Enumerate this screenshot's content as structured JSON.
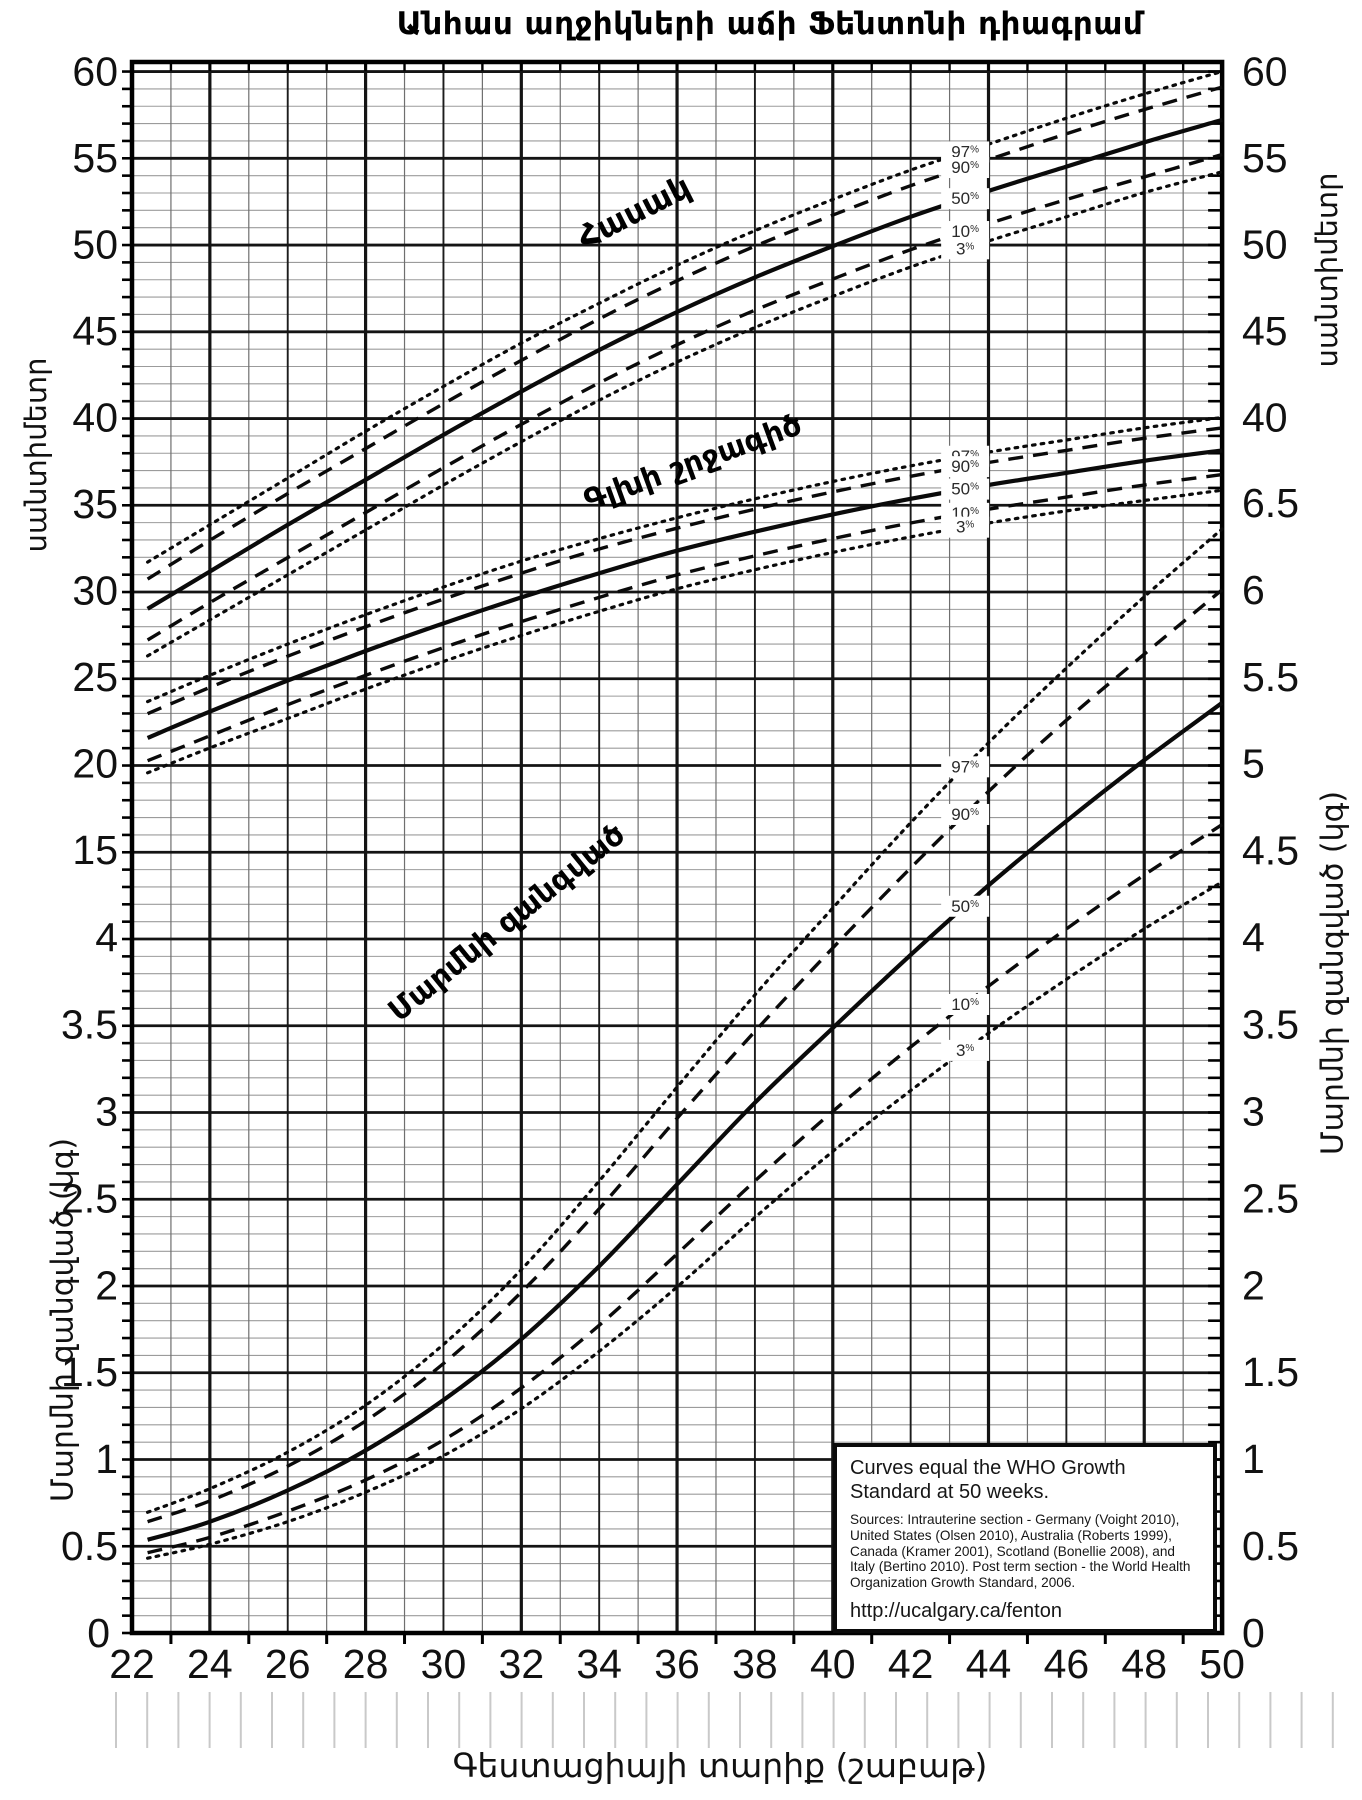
{
  "title": "Անհաս աղջիկների աճի Ֆենտոնի դիագրամ",
  "x_axis": {
    "label": "Գեստացիայի տարիք (շաբաթ)",
    "tick_labels": [
      22,
      24,
      26,
      28,
      30,
      32,
      34,
      36,
      38,
      40,
      42,
      44,
      46,
      48,
      50
    ],
    "min": 22,
    "max": 50,
    "unit": "weeks"
  },
  "left_axis": {
    "cm_label": "սանտիմետր",
    "cm_ticks": [
      60,
      55,
      50,
      45,
      40,
      35,
      30,
      25,
      20,
      15
    ],
    "kg_label": "Մարմնի զանգված (կգ)",
    "kg_ticks": [
      4,
      3.5,
      3,
      2.5,
      2,
      1.5,
      1,
      0.5
    ],
    "zero_label": "0"
  },
  "right_axis": {
    "cm_label": "սանտիմետր",
    "cm_ticks": [
      60,
      55,
      50,
      45,
      40
    ],
    "kg_label": "Մարմնի զանգված (կգ)",
    "kg_ticks": [
      6.5,
      6,
      5.5,
      5,
      4.5,
      4,
      3.5,
      3,
      2.5,
      2,
      1.5,
      1,
      0.5
    ],
    "zero_label": "0"
  },
  "percentile_labels": [
    "97%",
    "90%",
    "50%",
    "10%",
    "3%"
  ],
  "info_box": {
    "heading": "Curves equal the WHO Growth Standard at 50 weeks.",
    "sources": "Sources: Intrauterine section - Germany (Voight 2010), United States (Olsen 2010), Australia (Roberts 1999), Canada (Kramer 2001), Scotland (Bonellie 2008), and Italy (Bertino 2010). Post term section - the World Health Organization Growth Standard, 2006.",
    "url": "http://ucalgary.ca/fenton"
  },
  "chart_data": {
    "type": "line",
    "title": "Անհաս աղջիկների աճի Ֆենտոնի դիագրամ",
    "xlabel": "Գեստացիայի տարիք (շաբաթ)",
    "x_weeks": [
      22,
      24,
      26,
      28,
      30,
      32,
      34,
      36,
      38,
      40,
      42,
      44,
      46,
      48,
      50
    ],
    "axis_ranges": {
      "weeks": [
        22,
        50
      ],
      "cm": [
        15,
        60
      ],
      "kg": [
        0,
        6.5
      ]
    },
    "grid": "on",
    "legend_position": "labels-on-curves-at-week-43.4",
    "label_week": 43.4,
    "line_styles": {
      "97%": "dotted",
      "90%": "dashed",
      "50%": "solid",
      "10%": "dashed",
      "3%": "dotted"
    },
    "families": [
      {
        "id": "length",
        "label": "Հասակ",
        "unit": "cm",
        "series": {
          "97%": [
            31.1,
            33.8,
            36.5,
            39.2,
            41.8,
            44.3,
            46.6,
            48.8,
            50.8,
            52.6,
            54.3,
            55.8,
            57.3,
            58.7,
            60.0
          ],
          "90%": [
            30.1,
            32.9,
            35.6,
            38.2,
            40.8,
            43.3,
            45.7,
            47.9,
            49.9,
            51.7,
            53.4,
            54.9,
            56.4,
            57.8,
            59.1
          ],
          "50%": [
            28.4,
            31.1,
            33.8,
            36.4,
            39.0,
            41.5,
            43.9,
            46.1,
            48.1,
            49.9,
            51.6,
            53.1,
            54.5,
            55.9,
            57.2
          ],
          "10%": [
            26.6,
            29.3,
            31.9,
            34.5,
            37.1,
            39.6,
            42.0,
            44.2,
            46.2,
            48.0,
            49.7,
            51.2,
            52.6,
            53.9,
            55.2
          ],
          "3%": [
            25.7,
            28.3,
            30.9,
            33.5,
            36.1,
            38.6,
            41.0,
            43.2,
            45.2,
            47.0,
            48.7,
            50.2,
            51.6,
            53.0,
            54.2
          ]
        }
      },
      {
        "id": "head_circumference",
        "label": "Գլխի շրջագիծ",
        "unit": "cm",
        "series": {
          "97%": [
            23.2,
            25.1,
            26.9,
            28.6,
            30.2,
            31.7,
            33.0,
            34.2,
            35.3,
            36.3,
            37.2,
            38.0,
            38.7,
            39.4,
            40.0
          ],
          "90%": [
            22.5,
            24.4,
            26.2,
            27.9,
            29.5,
            31.0,
            32.4,
            33.6,
            34.7,
            35.7,
            36.6,
            37.4,
            38.1,
            38.8,
            39.4
          ],
          "50%": [
            21.1,
            23.0,
            24.8,
            26.5,
            28.1,
            29.6,
            31.0,
            32.3,
            33.4,
            34.4,
            35.3,
            36.1,
            36.8,
            37.5,
            38.1
          ],
          "10%": [
            19.8,
            21.6,
            23.4,
            25.1,
            26.7,
            28.2,
            29.6,
            30.9,
            32.0,
            33.0,
            33.9,
            34.7,
            35.4,
            36.1,
            36.7
          ],
          "3%": [
            19.1,
            20.9,
            22.6,
            24.3,
            25.9,
            27.4,
            28.8,
            30.1,
            31.2,
            32.2,
            33.1,
            33.9,
            34.6,
            35.2,
            35.8
          ]
        }
      },
      {
        "id": "weight",
        "label": "Մարմնի զանգված",
        "unit": "kg",
        "series": {
          "97%": [
            0.66,
            0.83,
            1.04,
            1.31,
            1.66,
            2.09,
            2.6,
            3.14,
            3.67,
            4.17,
            4.66,
            5.12,
            5.55,
            5.96,
            6.35
          ],
          "90%": [
            0.61,
            0.76,
            0.96,
            1.22,
            1.55,
            1.96,
            2.44,
            2.96,
            3.46,
            3.94,
            4.4,
            4.84,
            5.25,
            5.63,
            6.0
          ],
          "50%": [
            0.51,
            0.64,
            0.82,
            1.05,
            1.34,
            1.69,
            2.11,
            2.58,
            3.05,
            3.48,
            3.9,
            4.3,
            4.67,
            5.02,
            5.35
          ],
          "10%": [
            0.44,
            0.55,
            0.7,
            0.88,
            1.11,
            1.41,
            1.77,
            2.18,
            2.6,
            3.0,
            3.37,
            3.72,
            4.05,
            4.36,
            4.65
          ],
          "3%": [
            0.41,
            0.51,
            0.64,
            0.81,
            1.02,
            1.29,
            1.62,
            1.99,
            2.39,
            2.77,
            3.12,
            3.45,
            3.76,
            4.05,
            4.32
          ]
        }
      }
    ]
  },
  "colors": {
    "curve": "#0a0a0a",
    "grid_major": "#141414",
    "grid_medium": "#1c1c1c",
    "grid_minor": "#9b9b9b",
    "week_minor": "#6f6f6f",
    "border": "#000000",
    "ruler": "#c9c9c9",
    "text": "#111111",
    "percentile_text": "#2a2a2a"
  }
}
